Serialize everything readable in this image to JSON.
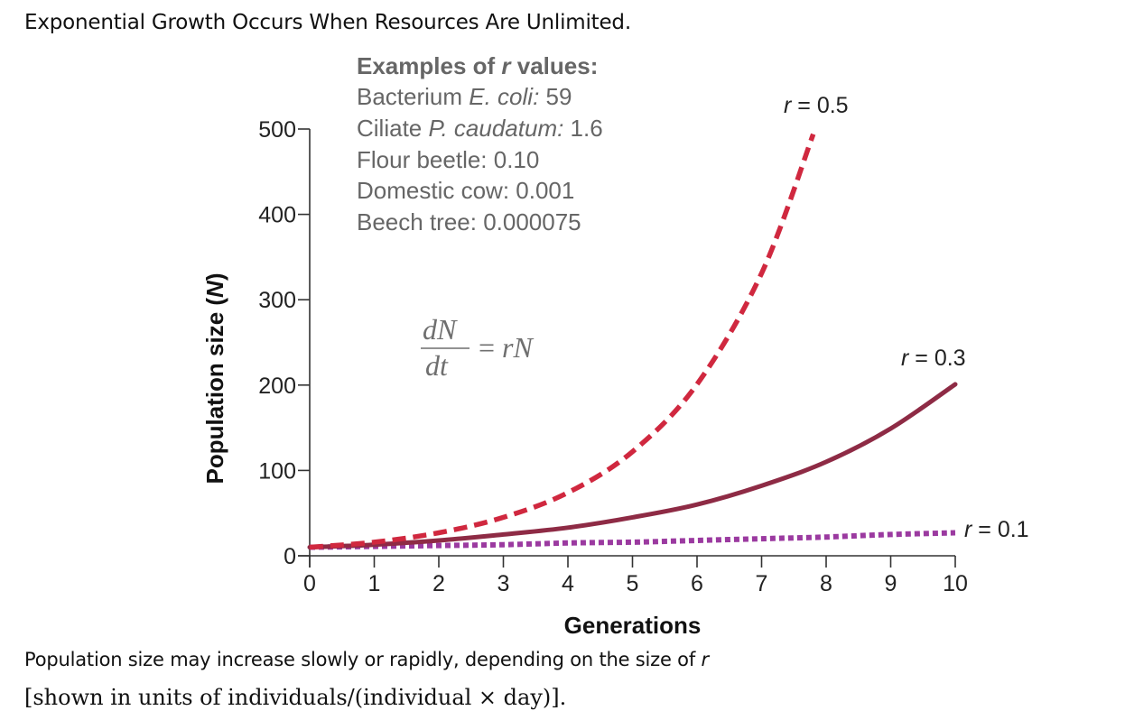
{
  "title": "Exponential Growth Occurs When Resources Are Unlimited.",
  "caption_line1": "Population size may increase slowly or rapidly, depending on the size of r",
  "caption_line2": "[shown in units of individuals/(individual × day)].",
  "examples": {
    "heading_prefix": "Examples of ",
    "heading_var": "r",
    "heading_suffix": " values:",
    "items": [
      {
        "label": "Bacterium ",
        "species": "E. coli:",
        "value": " 59"
      },
      {
        "label": "Ciliate ",
        "species": "P. caudatum:",
        "value": " 1.6"
      },
      {
        "label": "Flour beetle: 0.10",
        "species": "",
        "value": ""
      },
      {
        "label": "Domestic cow: 0.001",
        "species": "",
        "value": ""
      },
      {
        "label": "Beech tree: 0.000075",
        "species": "",
        "value": ""
      }
    ]
  },
  "equation": {
    "numerator": "dN",
    "denominator": "dt",
    "rhs_equals": "= ",
    "rhs": "rN"
  },
  "colors": {
    "r_0.5": "#d0283f",
    "r_0.3": "#8e2b45",
    "r_0.1": "#9b3aa0",
    "axis": "#333333"
  },
  "chart_data": {
    "type": "line",
    "xlabel": "Generations",
    "ylabel": "Population size (N)",
    "xlim": [
      0,
      10
    ],
    "ylim": [
      0,
      500
    ],
    "xticks": [
      0,
      1,
      2,
      3,
      4,
      5,
      6,
      7,
      8,
      9,
      10
    ],
    "yticks": [
      0,
      100,
      200,
      300,
      400,
      500
    ],
    "series": [
      {
        "name": "r = 0.5",
        "style": "dashed",
        "x": [
          0,
          1,
          2,
          3,
          4,
          5,
          6,
          7,
          7.8
        ],
        "y": [
          10,
          16,
          27,
          45,
          74,
          122,
          201,
          331,
          494
        ]
      },
      {
        "name": "r = 0.3",
        "style": "solid",
        "x": [
          0,
          1,
          2,
          3,
          4,
          5,
          6,
          7,
          8,
          9,
          10
        ],
        "y": [
          10,
          13,
          18,
          25,
          33,
          45,
          60,
          82,
          110,
          149,
          201
        ]
      },
      {
        "name": "r = 0.1",
        "style": "dotted",
        "x": [
          0,
          1,
          2,
          3,
          4,
          5,
          6,
          7,
          8,
          9,
          10
        ],
        "y": [
          10,
          11,
          12,
          13,
          15,
          16,
          18,
          20,
          22,
          25,
          27
        ]
      }
    ]
  }
}
